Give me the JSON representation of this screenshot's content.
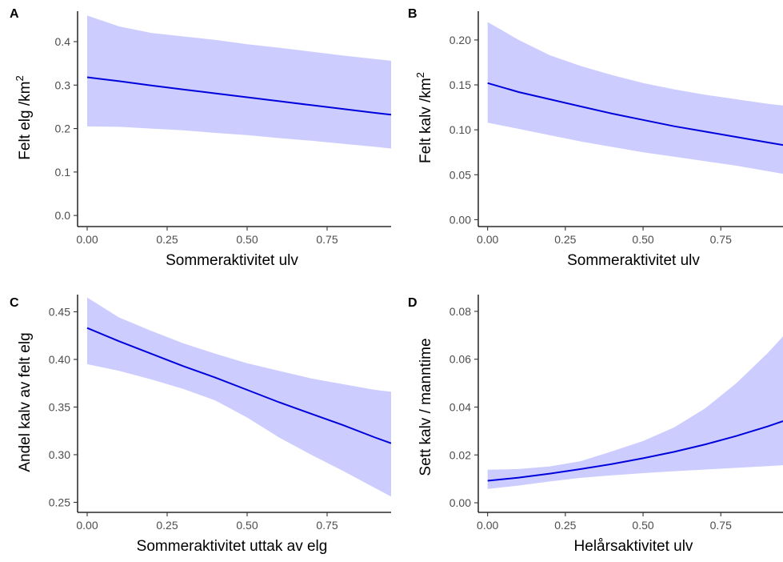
{
  "style": {
    "band_color": "#ccccff",
    "line_color": "#0000dd"
  },
  "chart_data": [
    {
      "panel": "A",
      "type": "line",
      "xlabel": "Sommeraktivitet ulv",
      "ylabel": "Felt elg /km",
      "ylabel_superscript": "2",
      "xlim": [
        -0.03,
        0.95
      ],
      "ylim": [
        -0.02,
        0.47
      ],
      "xticks": [
        0,
        0.25,
        0.5,
        0.75
      ],
      "xtick_labels": [
        "0.00",
        "0.25",
        "0.50",
        "0.75"
      ],
      "yticks": [
        0,
        0.1,
        0.2,
        0.3,
        0.4
      ],
      "ytick_labels": [
        "0.0",
        "0.1",
        "0.2",
        "0.3",
        "0.4"
      ],
      "grid": false,
      "series": [
        {
          "x": [
            0,
            0.1,
            0.2,
            0.3,
            0.4,
            0.5,
            0.6,
            0.7,
            0.8,
            0.9,
            0.95
          ],
          "y": [
            0.318,
            0.309,
            0.299,
            0.29,
            0.281,
            0.272,
            0.263,
            0.254,
            0.245,
            0.236,
            0.232
          ],
          "lower": [
            0.205,
            0.204,
            0.2,
            0.196,
            0.19,
            0.185,
            0.178,
            0.172,
            0.165,
            0.158,
            0.154
          ],
          "upper": [
            0.46,
            0.435,
            0.42,
            0.412,
            0.404,
            0.394,
            0.386,
            0.377,
            0.368,
            0.36,
            0.356
          ]
        }
      ]
    },
    {
      "panel": "B",
      "type": "line",
      "xlabel": "Sommeraktivitet ulv",
      "ylabel": "Felt kalv /km",
      "ylabel_superscript": "2",
      "xlim": [
        -0.03,
        0.95
      ],
      "ylim": [
        -0.005,
        0.232
      ],
      "xticks": [
        0,
        0.25,
        0.5,
        0.75
      ],
      "xtick_labels": [
        "0.00",
        "0.25",
        "0.50",
        "0.75"
      ],
      "yticks": [
        0,
        0.05,
        0.1,
        0.15,
        0.2
      ],
      "ytick_labels": [
        "0.00",
        "0.05",
        "0.10",
        "0.15",
        "0.20"
      ],
      "grid": false,
      "series": [
        {
          "x": [
            0,
            0.1,
            0.2,
            0.3,
            0.4,
            0.5,
            0.6,
            0.7,
            0.8,
            0.9,
            0.95
          ],
          "y": [
            0.152,
            0.142,
            0.134,
            0.126,
            0.118,
            0.111,
            0.104,
            0.098,
            0.092,
            0.086,
            0.083
          ],
          "lower": [
            0.108,
            0.101,
            0.094,
            0.087,
            0.081,
            0.075,
            0.07,
            0.065,
            0.06,
            0.054,
            0.051
          ],
          "upper": [
            0.22,
            0.2,
            0.183,
            0.171,
            0.161,
            0.152,
            0.145,
            0.139,
            0.134,
            0.129,
            0.127
          ]
        }
      ]
    },
    {
      "panel": "C",
      "type": "line",
      "xlabel": "Sommeraktivitet uttak av elg",
      "ylabel": "Andel kalv av felt elg",
      "ylabel_superscript": "",
      "xlim": [
        -0.03,
        0.95
      ],
      "ylim": [
        0.242,
        0.468
      ],
      "xticks": [
        0,
        0.25,
        0.5,
        0.75
      ],
      "xtick_labels": [
        "0.00",
        "0.25",
        "0.50",
        "0.75"
      ],
      "yticks": [
        0.25,
        0.3,
        0.35,
        0.4,
        0.45
      ],
      "ytick_labels": [
        "0.25",
        "0.30",
        "0.35",
        "0.40",
        "0.45"
      ],
      "grid": false,
      "series": [
        {
          "x": [
            0,
            0.1,
            0.2,
            0.3,
            0.4,
            0.5,
            0.6,
            0.7,
            0.8,
            0.9,
            0.95
          ],
          "y": [
            0.433,
            0.419,
            0.406,
            0.393,
            0.381,
            0.368,
            0.355,
            0.343,
            0.331,
            0.318,
            0.312
          ],
          "lower": [
            0.395,
            0.388,
            0.379,
            0.369,
            0.357,
            0.339,
            0.318,
            0.3,
            0.283,
            0.265,
            0.256
          ],
          "upper": [
            0.465,
            0.444,
            0.43,
            0.417,
            0.406,
            0.396,
            0.388,
            0.38,
            0.374,
            0.368,
            0.366
          ]
        }
      ]
    },
    {
      "panel": "D",
      "type": "line",
      "xlabel": "Helårsaktivitet ulv",
      "ylabel": "Sett kalv / manntime",
      "ylabel_superscript": "",
      "xlim": [
        -0.03,
        0.95
      ],
      "ylim": [
        -0.003,
        0.087
      ],
      "xticks": [
        0,
        0.25,
        0.5,
        0.75
      ],
      "xtick_labels": [
        "0.00",
        "0.25",
        "0.50",
        "0.75"
      ],
      "yticks": [
        0,
        0.02,
        0.04,
        0.06,
        0.08
      ],
      "ytick_labels": [
        "0.00",
        "0.02",
        "0.04",
        "0.06",
        "0.08"
      ],
      "grid": false,
      "series": [
        {
          "x": [
            0,
            0.1,
            0.2,
            0.3,
            0.4,
            0.5,
            0.6,
            0.7,
            0.8,
            0.9,
            0.95
          ],
          "y": [
            0.0092,
            0.0105,
            0.0122,
            0.0141,
            0.0162,
            0.0186,
            0.0213,
            0.0244,
            0.0279,
            0.0319,
            0.0341
          ],
          "lower": [
            0.0058,
            0.0072,
            0.0089,
            0.0104,
            0.0115,
            0.0124,
            0.0132,
            0.0139,
            0.0146,
            0.0153,
            0.0157
          ],
          "upper": [
            0.0138,
            0.0141,
            0.0152,
            0.0174,
            0.0215,
            0.0258,
            0.0315,
            0.0395,
            0.05,
            0.0625,
            0.0695
          ]
        }
      ]
    }
  ]
}
